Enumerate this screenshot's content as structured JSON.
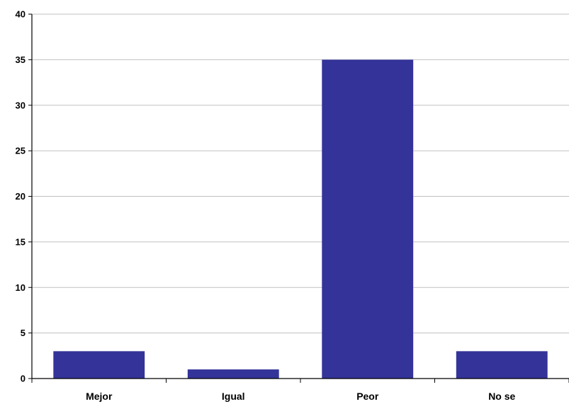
{
  "chart_data": {
    "type": "bar",
    "categories": [
      "Mejor",
      "Igual",
      "Peor",
      "No se"
    ],
    "values": [
      3,
      1,
      35,
      3
    ],
    "title": "",
    "xlabel": "",
    "ylabel": "",
    "ylim": [
      0,
      40
    ],
    "yticks": [
      0,
      5,
      10,
      15,
      20,
      25,
      30,
      35,
      40
    ],
    "grid": true,
    "legend": "none",
    "colors": {
      "bar": "#333399",
      "grid": "#c0c0c0",
      "axis": "#000000"
    }
  }
}
